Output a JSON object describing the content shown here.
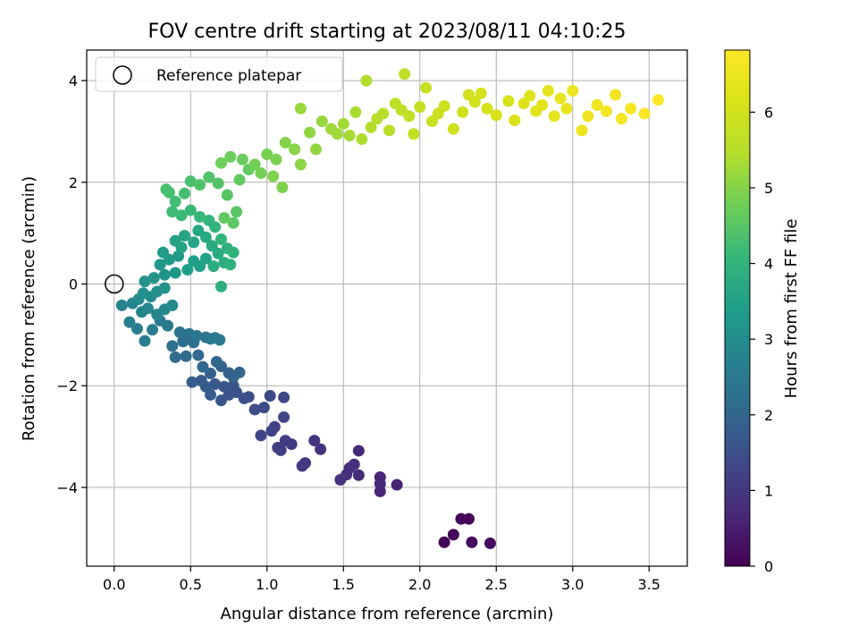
{
  "chart_data": {
    "type": "scatter",
    "title": "FOV centre drift starting at 2023/08/11 04:10:25",
    "xlabel": "Angular distance from reference (arcmin)",
    "ylabel": "Rotation from reference (arcmin)",
    "xlim": [
      -0.18,
      3.75
    ],
    "ylim": [
      -5.55,
      4.6
    ],
    "xticks": [
      0.0,
      0.5,
      1.0,
      1.5,
      2.0,
      2.5,
      3.0,
      3.5
    ],
    "xtick_labels": [
      "0.0",
      "0.5",
      "1.0",
      "1.5",
      "2.0",
      "2.5",
      "3.0",
      "3.5"
    ],
    "yticks": [
      -4,
      -2,
      0,
      2,
      4
    ],
    "ytick_labels": [
      "−4",
      "−2",
      "0",
      "2",
      "4"
    ],
    "grid": true,
    "colorbar": {
      "label": "Hours from first FF file",
      "colormap": "viridis",
      "range": [
        0,
        6.82
      ],
      "ticks": [
        0,
        1,
        2,
        3,
        4,
        5,
        6
      ],
      "tick_labels": [
        "0",
        "1",
        "2",
        "3",
        "4",
        "5",
        "6"
      ]
    },
    "legend": {
      "position": "top-left",
      "label": "Reference platepar"
    },
    "reference_point": {
      "x": 0.0,
      "y": 0.0
    },
    "series": [
      {
        "x": 2.16,
        "y": -5.08,
        "t": 0.05
      },
      {
        "x": 2.22,
        "y": -4.93,
        "t": 0.08
      },
      {
        "x": 2.27,
        "y": -4.62,
        "t": 0.1
      },
      {
        "x": 2.32,
        "y": -4.62,
        "t": 0.12
      },
      {
        "x": 2.34,
        "y": -5.08,
        "t": 0.15
      },
      {
        "x": 2.46,
        "y": -5.1,
        "t": 0.18
      },
      {
        "x": 1.85,
        "y": -3.95,
        "t": 0.6
      },
      {
        "x": 1.74,
        "y": -3.8,
        "t": 0.63
      },
      {
        "x": 1.74,
        "y": -4.08,
        "t": 0.66
      },
      {
        "x": 1.74,
        "y": -3.93,
        "t": 0.7
      },
      {
        "x": 1.6,
        "y": -3.28,
        "t": 0.73
      },
      {
        "x": 1.6,
        "y": -3.76,
        "t": 0.76
      },
      {
        "x": 1.57,
        "y": -3.55,
        "t": 0.8
      },
      {
        "x": 1.54,
        "y": -3.62,
        "t": 0.83
      },
      {
        "x": 1.52,
        "y": -3.75,
        "t": 0.86
      },
      {
        "x": 1.48,
        "y": -3.85,
        "t": 0.9
      },
      {
        "x": 1.35,
        "y": -3.25,
        "t": 0.93
      },
      {
        "x": 1.31,
        "y": -3.08,
        "t": 0.96
      },
      {
        "x": 1.25,
        "y": -3.52,
        "t": 1.0
      },
      {
        "x": 1.23,
        "y": -3.58,
        "t": 1.03
      },
      {
        "x": 1.16,
        "y": -3.15,
        "t": 1.06
      },
      {
        "x": 1.12,
        "y": -3.08,
        "t": 1.1
      },
      {
        "x": 1.09,
        "y": -3.27,
        "t": 1.13
      },
      {
        "x": 1.07,
        "y": -3.22,
        "t": 1.16
      },
      {
        "x": 1.05,
        "y": -2.81,
        "t": 1.2
      },
      {
        "x": 1.03,
        "y": -2.89,
        "t": 1.23
      },
      {
        "x": 0.96,
        "y": -2.98,
        "t": 1.26
      },
      {
        "x": 1.11,
        "y": -2.62,
        "t": 1.3
      },
      {
        "x": 1.11,
        "y": -2.23,
        "t": 1.33
      },
      {
        "x": 1.02,
        "y": -2.2,
        "t": 1.36
      },
      {
        "x": 0.98,
        "y": -2.43,
        "t": 1.4
      },
      {
        "x": 0.92,
        "y": -2.47,
        "t": 1.43
      },
      {
        "x": 0.88,
        "y": -2.22,
        "t": 1.46
      },
      {
        "x": 0.85,
        "y": -2.25,
        "t": 1.5
      },
      {
        "x": 0.8,
        "y": -2.13,
        "t": 1.53
      },
      {
        "x": 0.78,
        "y": -2.0,
        "t": 1.56
      },
      {
        "x": 0.75,
        "y": -2.18,
        "t": 1.6
      },
      {
        "x": 0.72,
        "y": -2.02,
        "t": 1.63
      },
      {
        "x": 0.7,
        "y": -2.29,
        "t": 1.66
      },
      {
        "x": 0.66,
        "y": -1.97,
        "t": 1.7
      },
      {
        "x": 0.63,
        "y": -2.18,
        "t": 1.73
      },
      {
        "x": 0.6,
        "y": -2.02,
        "t": 1.76
      },
      {
        "x": 0.57,
        "y": -1.9,
        "t": 1.8
      },
      {
        "x": 0.51,
        "y": -1.93,
        "t": 1.83
      },
      {
        "x": 0.63,
        "y": -1.76,
        "t": 1.86
      },
      {
        "x": 0.7,
        "y": -1.62,
        "t": 1.9
      },
      {
        "x": 0.75,
        "y": -1.75,
        "t": 1.93
      },
      {
        "x": 0.78,
        "y": -1.83,
        "t": 1.96
      },
      {
        "x": 0.82,
        "y": -1.74,
        "t": 2.0
      },
      {
        "x": 0.67,
        "y": -1.53,
        "t": 2.03
      },
      {
        "x": 0.58,
        "y": -1.63,
        "t": 2.06
      },
      {
        "x": 0.55,
        "y": -1.4,
        "t": 2.1
      },
      {
        "x": 0.47,
        "y": -1.42,
        "t": 2.13
      },
      {
        "x": 0.4,
        "y": -1.44,
        "t": 2.16
      },
      {
        "x": 0.45,
        "y": -1.13,
        "t": 2.2
      },
      {
        "x": 0.52,
        "y": -1.15,
        "t": 2.23
      },
      {
        "x": 0.38,
        "y": -1.22,
        "t": 2.26
      },
      {
        "x": 0.43,
        "y": -0.95,
        "t": 2.3
      },
      {
        "x": 0.49,
        "y": -0.98,
        "t": 2.33
      },
      {
        "x": 0.54,
        "y": -1.02,
        "t": 2.36
      },
      {
        "x": 0.6,
        "y": -1.05,
        "t": 2.4
      },
      {
        "x": 0.63,
        "y": -1.08,
        "t": 2.43
      },
      {
        "x": 0.66,
        "y": -1.06,
        "t": 2.46
      },
      {
        "x": 0.69,
        "y": -1.1,
        "t": 2.5
      },
      {
        "x": 0.35,
        "y": -0.82,
        "t": 2.53
      },
      {
        "x": 0.3,
        "y": -0.72,
        "t": 2.56
      },
      {
        "x": 0.25,
        "y": -0.9,
        "t": 2.6
      },
      {
        "x": 0.2,
        "y": -1.12,
        "t": 2.63
      },
      {
        "x": 0.15,
        "y": -0.88,
        "t": 2.66
      },
      {
        "x": 0.1,
        "y": -0.75,
        "t": 2.7
      },
      {
        "x": 0.05,
        "y": -0.42,
        "t": 2.73
      },
      {
        "x": 0.12,
        "y": -0.38,
        "t": 2.76
      },
      {
        "x": 0.18,
        "y": -0.55,
        "t": 2.8
      },
      {
        "x": 0.22,
        "y": -0.48,
        "t": 2.83
      },
      {
        "x": 0.28,
        "y": -0.6,
        "t": 2.86
      },
      {
        "x": 0.33,
        "y": -0.5,
        "t": 2.9
      },
      {
        "x": 0.38,
        "y": -0.42,
        "t": 2.93
      },
      {
        "x": 0.16,
        "y": -0.3,
        "t": 2.96
      },
      {
        "x": 0.24,
        "y": -0.25,
        "t": 3.0
      },
      {
        "x": 0.28,
        "y": -0.15,
        "t": 3.03
      },
      {
        "x": 0.19,
        "y": -0.18,
        "t": 3.06
      },
      {
        "x": 0.33,
        "y": -0.08,
        "t": 3.1
      },
      {
        "x": 0.2,
        "y": 0.05,
        "t": 3.13
      },
      {
        "x": 0.26,
        "y": 0.12,
        "t": 3.16
      },
      {
        "x": 0.33,
        "y": 0.18,
        "t": 3.2
      },
      {
        "x": 0.4,
        "y": 0.22,
        "t": 3.23
      },
      {
        "x": 0.3,
        "y": 0.38,
        "t": 3.26
      },
      {
        "x": 0.36,
        "y": 0.48,
        "t": 3.3
      },
      {
        "x": 0.42,
        "y": 0.55,
        "t": 3.33
      },
      {
        "x": 0.32,
        "y": 0.62,
        "t": 3.36
      },
      {
        "x": 0.48,
        "y": 0.28,
        "t": 3.4
      },
      {
        "x": 0.52,
        "y": 0.45,
        "t": 3.43
      },
      {
        "x": 0.56,
        "y": 0.35,
        "t": 3.46
      },
      {
        "x": 0.6,
        "y": 0.5,
        "t": 3.5
      },
      {
        "x": 0.44,
        "y": 0.72,
        "t": 3.53
      },
      {
        "x": 0.4,
        "y": 0.85,
        "t": 3.56
      },
      {
        "x": 0.46,
        "y": 0.95,
        "t": 3.6
      },
      {
        "x": 0.52,
        "y": 0.82,
        "t": 3.63
      },
      {
        "x": 0.55,
        "y": 1.05,
        "t": 3.66
      },
      {
        "x": 0.6,
        "y": 0.92,
        "t": 3.7
      },
      {
        "x": 0.64,
        "y": 0.75,
        "t": 3.73
      },
      {
        "x": 0.68,
        "y": 0.6,
        "t": 3.76
      },
      {
        "x": 0.72,
        "y": 0.42,
        "t": 3.8
      },
      {
        "x": 0.65,
        "y": 0.35,
        "t": 3.83
      },
      {
        "x": 0.7,
        "y": -0.05,
        "t": 3.86
      },
      {
        "x": 0.76,
        "y": 0.38,
        "t": 3.9
      },
      {
        "x": 0.74,
        "y": 0.7,
        "t": 3.93
      },
      {
        "x": 0.78,
        "y": 0.62,
        "t": 3.96
      },
      {
        "x": 0.7,
        "y": 0.88,
        "t": 4.0
      },
      {
        "x": 0.66,
        "y": 1.12,
        "t": 4.03
      },
      {
        "x": 0.62,
        "y": 1.25,
        "t": 4.06
      },
      {
        "x": 0.56,
        "y": 1.32,
        "t": 4.1
      },
      {
        "x": 0.5,
        "y": 1.45,
        "t": 4.13
      },
      {
        "x": 0.44,
        "y": 1.35,
        "t": 4.16
      },
      {
        "x": 0.38,
        "y": 1.42,
        "t": 4.2
      },
      {
        "x": 0.4,
        "y": 1.62,
        "t": 4.23
      },
      {
        "x": 0.46,
        "y": 1.78,
        "t": 4.26
      },
      {
        "x": 0.36,
        "y": 1.8,
        "t": 4.3
      },
      {
        "x": 0.34,
        "y": 1.86,
        "t": 4.33
      },
      {
        "x": 0.5,
        "y": 2.02,
        "t": 4.36
      },
      {
        "x": 0.56,
        "y": 1.95,
        "t": 4.4
      },
      {
        "x": 0.62,
        "y": 2.1,
        "t": 4.43
      },
      {
        "x": 0.68,
        "y": 1.98,
        "t": 4.46
      },
      {
        "x": 0.74,
        "y": 1.75,
        "t": 4.5
      },
      {
        "x": 0.8,
        "y": 1.42,
        "t": 4.53
      },
      {
        "x": 0.78,
        "y": 1.2,
        "t": 4.56
      },
      {
        "x": 0.72,
        "y": 1.3,
        "t": 4.6
      },
      {
        "x": 0.82,
        "y": 2.05,
        "t": 4.63
      },
      {
        "x": 0.88,
        "y": 2.25,
        "t": 4.66
      },
      {
        "x": 0.84,
        "y": 2.45,
        "t": 4.7
      },
      {
        "x": 0.76,
        "y": 2.5,
        "t": 4.73
      },
      {
        "x": 0.7,
        "y": 2.38,
        "t": 4.76
      },
      {
        "x": 0.92,
        "y": 2.35,
        "t": 4.8
      },
      {
        "x": 0.96,
        "y": 2.18,
        "t": 4.83
      },
      {
        "x": 1.0,
        "y": 2.55,
        "t": 4.86
      },
      {
        "x": 1.06,
        "y": 2.45,
        "t": 4.9
      },
      {
        "x": 1.1,
        "y": 1.9,
        "t": 4.93
      },
      {
        "x": 1.04,
        "y": 2.12,
        "t": 4.96
      },
      {
        "x": 1.12,
        "y": 2.78,
        "t": 5.0
      },
      {
        "x": 1.18,
        "y": 2.65,
        "t": 5.03
      },
      {
        "x": 1.22,
        "y": 2.35,
        "t": 5.06
      },
      {
        "x": 1.28,
        "y": 2.98,
        "t": 5.1
      },
      {
        "x": 1.32,
        "y": 2.65,
        "t": 5.13
      },
      {
        "x": 1.36,
        "y": 3.2,
        "t": 5.16
      },
      {
        "x": 1.22,
        "y": 3.45,
        "t": 5.2
      },
      {
        "x": 1.42,
        "y": 3.05,
        "t": 5.23
      },
      {
        "x": 1.46,
        "y": 2.95,
        "t": 5.26
      },
      {
        "x": 1.5,
        "y": 3.15,
        "t": 5.3
      },
      {
        "x": 1.54,
        "y": 2.92,
        "t": 5.33
      },
      {
        "x": 1.58,
        "y": 3.38,
        "t": 5.36
      },
      {
        "x": 1.62,
        "y": 2.85,
        "t": 5.4
      },
      {
        "x": 1.65,
        "y": 4.0,
        "t": 5.43
      },
      {
        "x": 1.68,
        "y": 3.08,
        "t": 5.46
      },
      {
        "x": 1.72,
        "y": 3.25,
        "t": 5.5
      },
      {
        "x": 1.76,
        "y": 3.35,
        "t": 5.53
      },
      {
        "x": 1.8,
        "y": 3.02,
        "t": 5.56
      },
      {
        "x": 1.84,
        "y": 3.55,
        "t": 5.6
      },
      {
        "x": 1.88,
        "y": 3.42,
        "t": 5.63
      },
      {
        "x": 1.9,
        "y": 4.13,
        "t": 5.66
      },
      {
        "x": 1.93,
        "y": 3.3,
        "t": 5.7
      },
      {
        "x": 1.96,
        "y": 2.95,
        "t": 5.73
      },
      {
        "x": 2.0,
        "y": 3.48,
        "t": 5.76
      },
      {
        "x": 2.04,
        "y": 3.86,
        "t": 5.8
      },
      {
        "x": 2.08,
        "y": 3.2,
        "t": 5.83
      },
      {
        "x": 2.12,
        "y": 3.35,
        "t": 5.86
      },
      {
        "x": 2.16,
        "y": 3.5,
        "t": 5.9
      },
      {
        "x": 2.22,
        "y": 3.05,
        "t": 5.93
      },
      {
        "x": 2.28,
        "y": 3.38,
        "t": 5.96
      },
      {
        "x": 2.32,
        "y": 3.72,
        "t": 6.0
      },
      {
        "x": 2.36,
        "y": 3.58,
        "t": 6.03
      },
      {
        "x": 2.4,
        "y": 3.75,
        "t": 6.06
      },
      {
        "x": 2.44,
        "y": 3.45,
        "t": 6.1
      },
      {
        "x": 2.5,
        "y": 3.32,
        "t": 6.13
      },
      {
        "x": 2.58,
        "y": 3.6,
        "t": 6.16
      },
      {
        "x": 2.62,
        "y": 3.22,
        "t": 6.2
      },
      {
        "x": 2.68,
        "y": 3.55,
        "t": 6.23
      },
      {
        "x": 2.72,
        "y": 3.7,
        "t": 6.26
      },
      {
        "x": 2.76,
        "y": 3.4,
        "t": 6.3
      },
      {
        "x": 2.8,
        "y": 3.52,
        "t": 6.33
      },
      {
        "x": 2.84,
        "y": 3.8,
        "t": 6.36
      },
      {
        "x": 2.88,
        "y": 3.3,
        "t": 6.4
      },
      {
        "x": 2.92,
        "y": 3.65,
        "t": 6.43
      },
      {
        "x": 2.96,
        "y": 3.45,
        "t": 6.46
      },
      {
        "x": 3.0,
        "y": 3.8,
        "t": 6.5
      },
      {
        "x": 3.06,
        "y": 3.02,
        "t": 6.53
      },
      {
        "x": 3.1,
        "y": 3.3,
        "t": 6.56
      },
      {
        "x": 3.16,
        "y": 3.52,
        "t": 6.6
      },
      {
        "x": 3.22,
        "y": 3.4,
        "t": 6.63
      },
      {
        "x": 3.28,
        "y": 3.72,
        "t": 6.66
      },
      {
        "x": 3.32,
        "y": 3.25,
        "t": 6.7
      },
      {
        "x": 3.38,
        "y": 3.45,
        "t": 6.73
      },
      {
        "x": 3.47,
        "y": 3.35,
        "t": 6.76
      },
      {
        "x": 3.56,
        "y": 3.62,
        "t": 6.8
      }
    ]
  }
}
